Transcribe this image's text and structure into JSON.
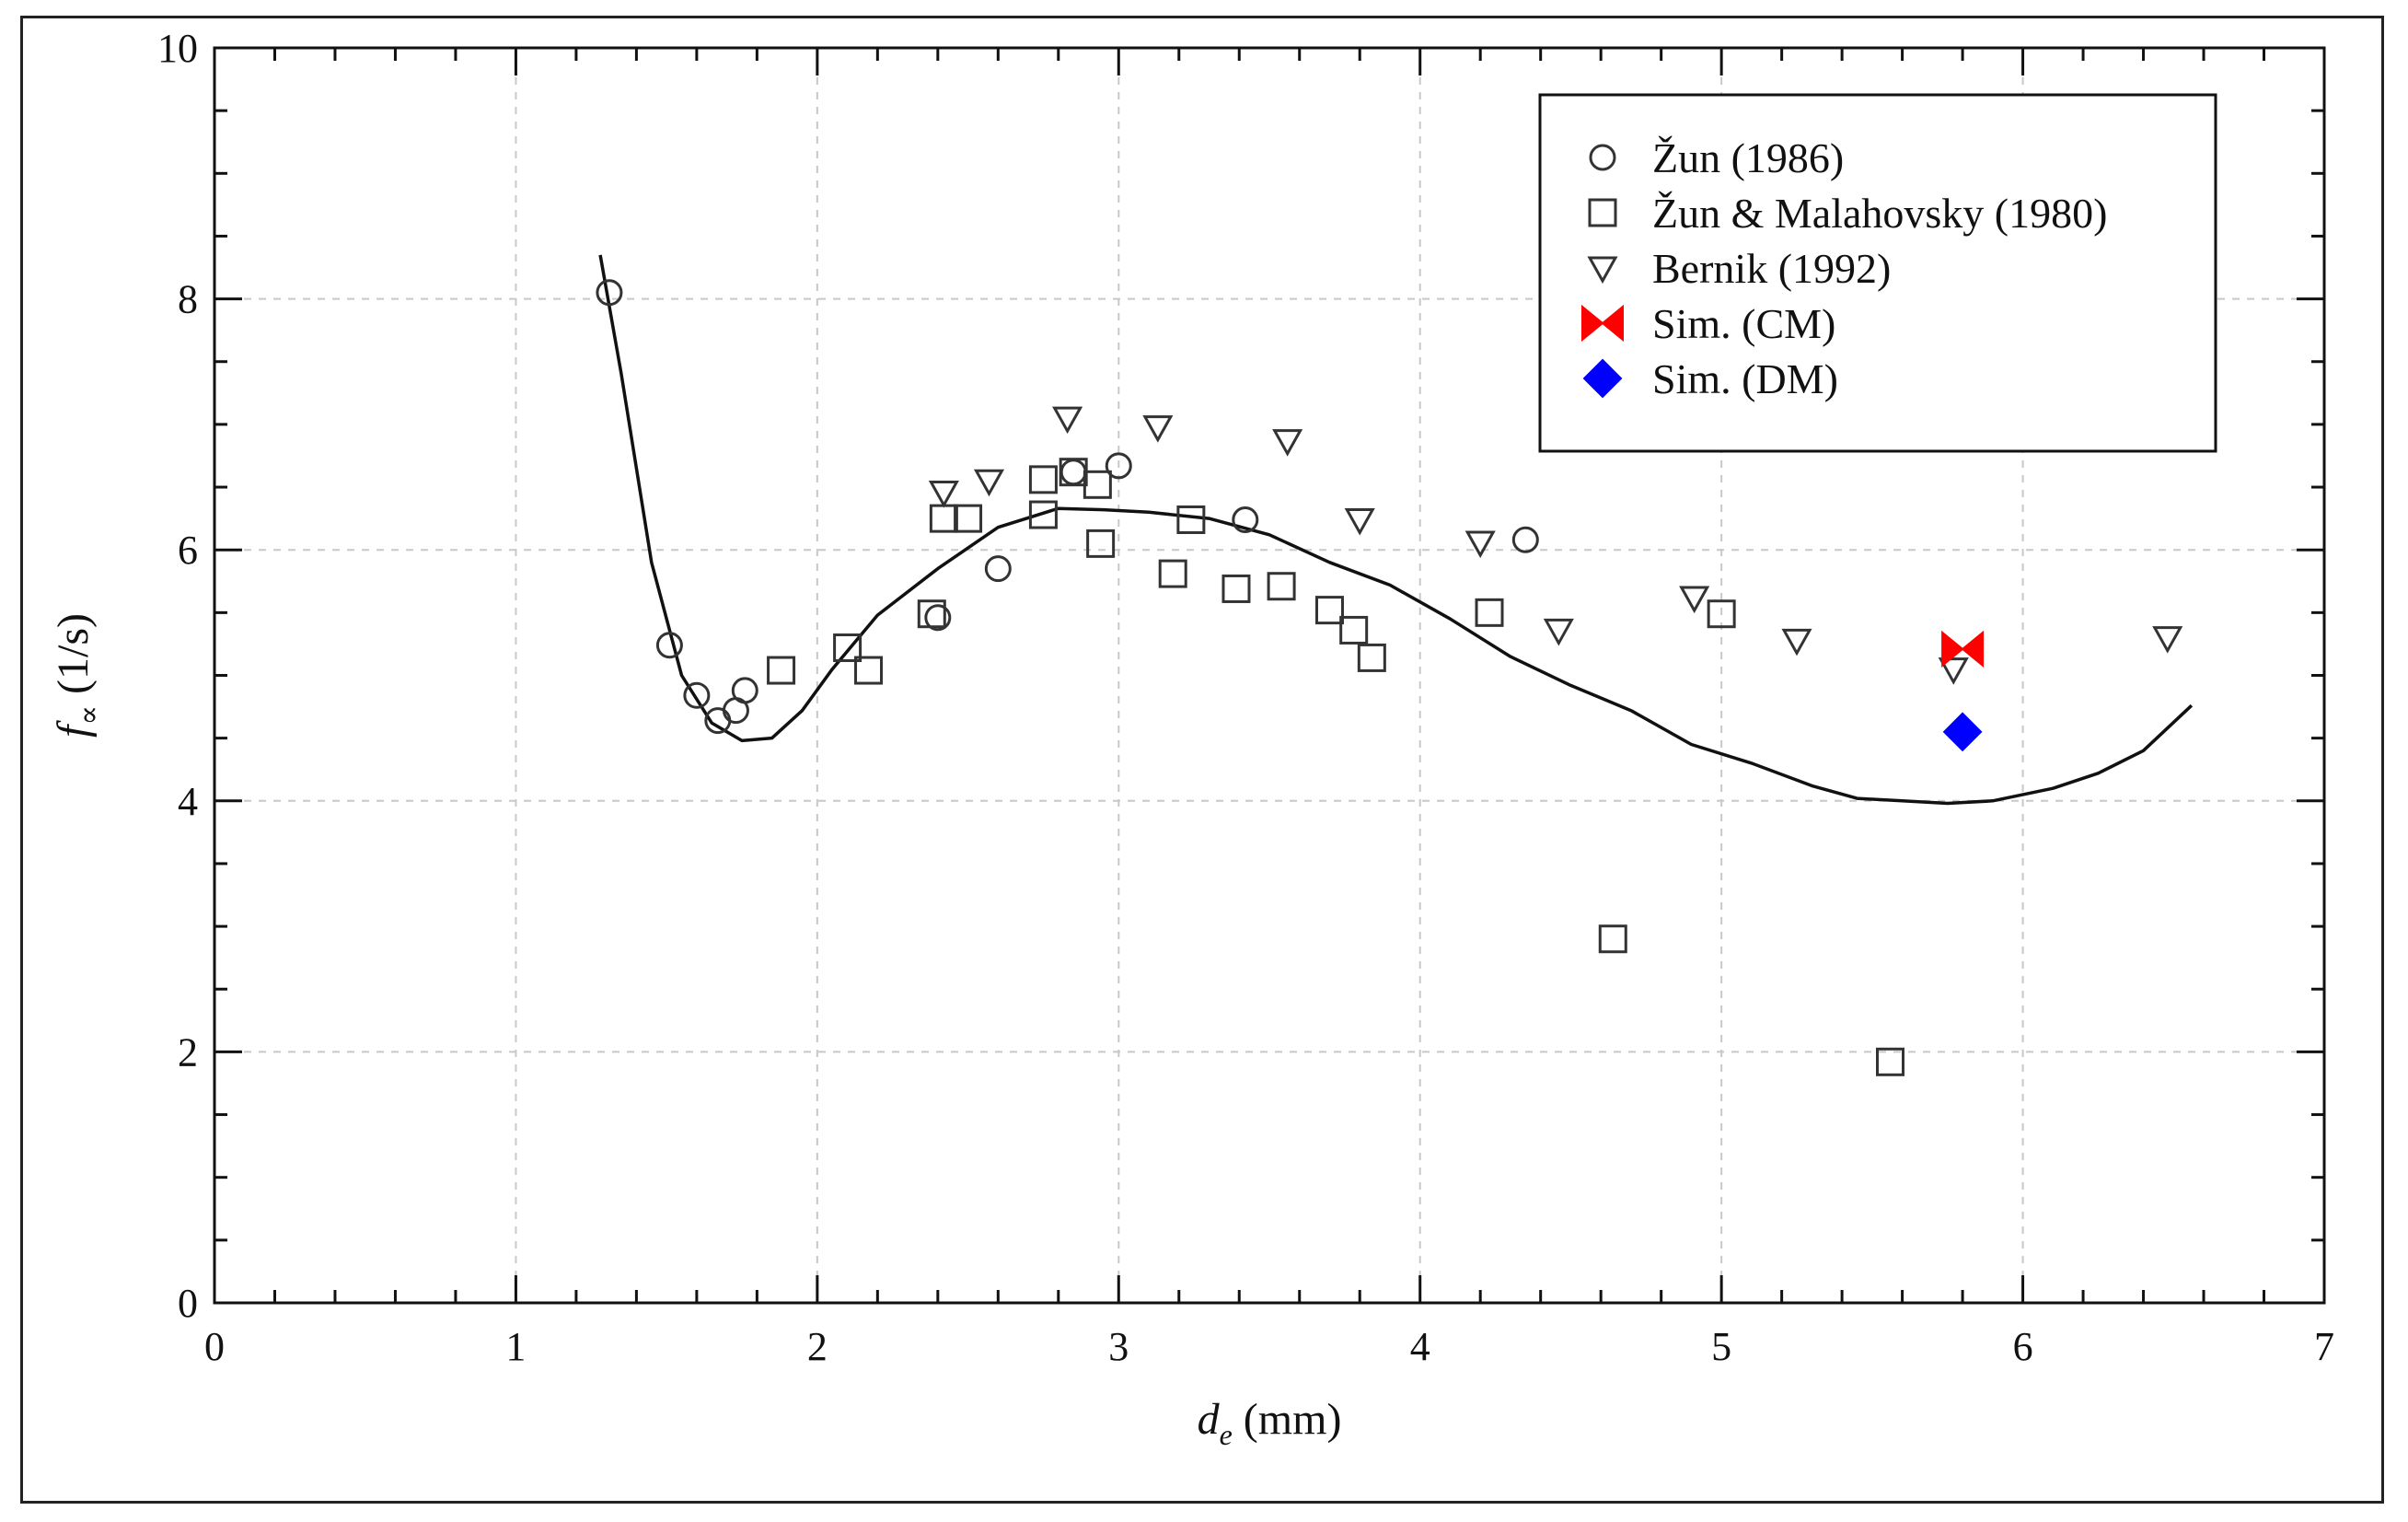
{
  "chart_data": {
    "type": "scatter",
    "title": "",
    "xlabel": {
      "symbol": "d",
      "subscript": "e",
      "unit": " (mm)"
    },
    "ylabel": {
      "symbol": "f",
      "subscript": "∝",
      "unit": " (1/s)"
    },
    "xlim": [
      0,
      7
    ],
    "ylim": [
      0,
      10
    ],
    "xticks": [
      0,
      1,
      2,
      3,
      4,
      5,
      6,
      7
    ],
    "yticks": [
      0,
      2,
      4,
      6,
      8,
      10
    ],
    "grid": true,
    "legend_position": "top-right",
    "series": [
      {
        "name": "Žun (1986)",
        "marker": "circle",
        "color": "#333333",
        "points": [
          [
            1.31,
            8.05
          ],
          [
            1.51,
            5.24
          ],
          [
            1.6,
            4.84
          ],
          [
            1.67,
            4.64
          ],
          [
            1.73,
            4.72
          ],
          [
            1.76,
            4.88
          ],
          [
            2.4,
            5.46
          ],
          [
            2.6,
            5.85
          ],
          [
            2.85,
            6.62
          ],
          [
            3.0,
            6.67
          ],
          [
            3.42,
            6.24
          ],
          [
            4.35,
            6.08
          ]
        ]
      },
      {
        "name": "Žun & Malahovsky (1980)",
        "marker": "square",
        "color": "#333333",
        "points": [
          [
            1.88,
            5.04
          ],
          [
            2.1,
            5.22
          ],
          [
            2.17,
            5.04
          ],
          [
            2.38,
            5.49
          ],
          [
            2.42,
            6.25
          ],
          [
            2.5,
            6.25
          ],
          [
            2.75,
            6.56
          ],
          [
            2.75,
            6.28
          ],
          [
            2.85,
            6.62
          ],
          [
            2.93,
            6.52
          ],
          [
            2.94,
            6.05
          ],
          [
            3.18,
            5.81
          ],
          [
            3.24,
            6.24
          ],
          [
            3.39,
            5.69
          ],
          [
            3.54,
            5.71
          ],
          [
            3.7,
            5.52
          ],
          [
            3.78,
            5.36
          ],
          [
            3.84,
            5.14
          ],
          [
            4.23,
            5.5
          ],
          [
            4.64,
            2.9
          ],
          [
            5.0,
            5.49
          ],
          [
            5.56,
            1.92
          ]
        ]
      },
      {
        "name": "Bernik (1992)",
        "marker": "triangle-down",
        "color": "#333333",
        "points": [
          [
            2.42,
            6.46
          ],
          [
            2.57,
            6.55
          ],
          [
            2.83,
            7.05
          ],
          [
            3.13,
            6.98
          ],
          [
            3.56,
            6.87
          ],
          [
            3.8,
            6.24
          ],
          [
            4.2,
            6.06
          ],
          [
            4.46,
            5.36
          ],
          [
            4.91,
            5.62
          ],
          [
            5.25,
            5.28
          ],
          [
            5.77,
            5.05
          ],
          [
            6.48,
            5.3
          ]
        ]
      },
      {
        "name": "Sim. (CM)",
        "marker": "bowtie",
        "color": "#ff0000",
        "points": [
          [
            5.8,
            5.21
          ]
        ]
      },
      {
        "name": "Sim. (DM)",
        "marker": "diamond",
        "color": "#0000ff",
        "points": [
          [
            5.8,
            4.55
          ]
        ]
      }
    ],
    "curve": {
      "name": "fit",
      "color": "#111111",
      "points": [
        [
          1.28,
          8.35
        ],
        [
          1.35,
          7.4
        ],
        [
          1.45,
          5.9
        ],
        [
          1.55,
          5.0
        ],
        [
          1.65,
          4.62
        ],
        [
          1.75,
          4.48
        ],
        [
          1.85,
          4.5
        ],
        [
          1.95,
          4.72
        ],
        [
          2.05,
          5.05
        ],
        [
          2.2,
          5.48
        ],
        [
          2.4,
          5.85
        ],
        [
          2.6,
          6.18
        ],
        [
          2.8,
          6.33
        ],
        [
          2.95,
          6.32
        ],
        [
          3.1,
          6.3
        ],
        [
          3.3,
          6.25
        ],
        [
          3.5,
          6.12
        ],
        [
          3.7,
          5.9
        ],
        [
          3.9,
          5.72
        ],
        [
          4.1,
          5.45
        ],
        [
          4.3,
          5.15
        ],
        [
          4.5,
          4.92
        ],
        [
          4.7,
          4.72
        ],
        [
          4.9,
          4.45
        ],
        [
          5.1,
          4.3
        ],
        [
          5.3,
          4.12
        ],
        [
          5.45,
          4.02
        ],
        [
          5.6,
          4.0
        ],
        [
          5.75,
          3.98
        ],
        [
          5.9,
          4.0
        ],
        [
          6.1,
          4.1
        ],
        [
          6.25,
          4.22
        ],
        [
          6.4,
          4.4
        ],
        [
          6.56,
          4.76
        ]
      ]
    }
  }
}
